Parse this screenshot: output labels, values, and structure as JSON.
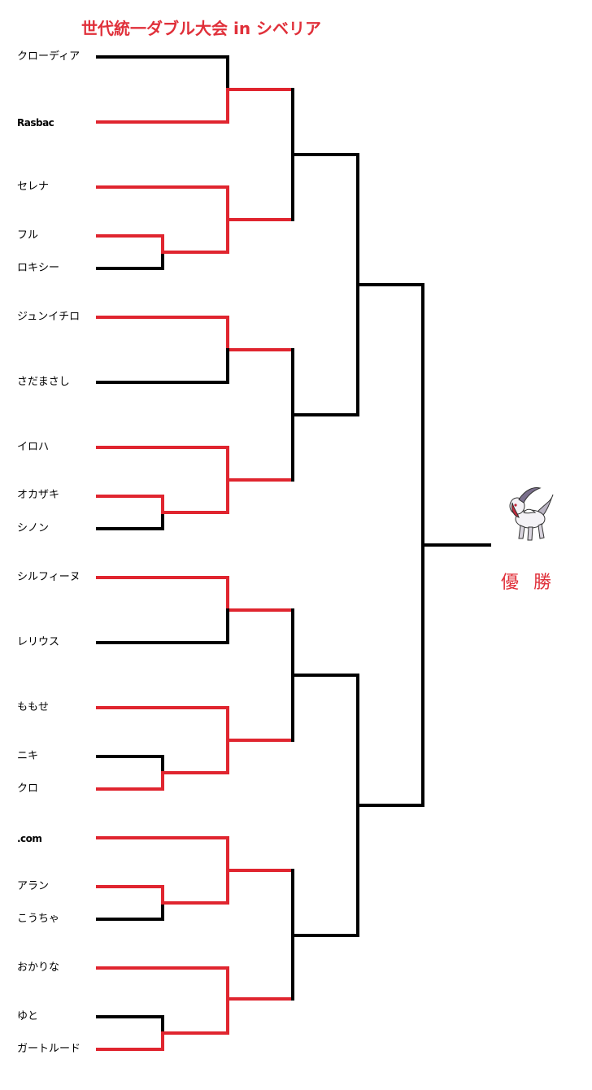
{
  "title": "世代統一ダブル大会 in シベリア",
  "players": [
    "クローディア",
    "Rasbac",
    "セレナ",
    "フル",
    "ロキシー",
    "ジュンイチロ",
    "さだまさし",
    "イロハ",
    "オカザキ",
    "シノン",
    "シルフィーヌ",
    "レリウス",
    "ももせ",
    "ニキ",
    "クロ",
    ".com",
    "アラン",
    "こうちゃ",
    "おかりな",
    "ゆと",
    "ガートルード"
  ],
  "champion": {
    "label": "優勝",
    "icon": "absol-pokemon-icon"
  },
  "colors": {
    "winner_line": "#e0252f",
    "loser_line": "#000000",
    "title": "#e0303a"
  }
}
